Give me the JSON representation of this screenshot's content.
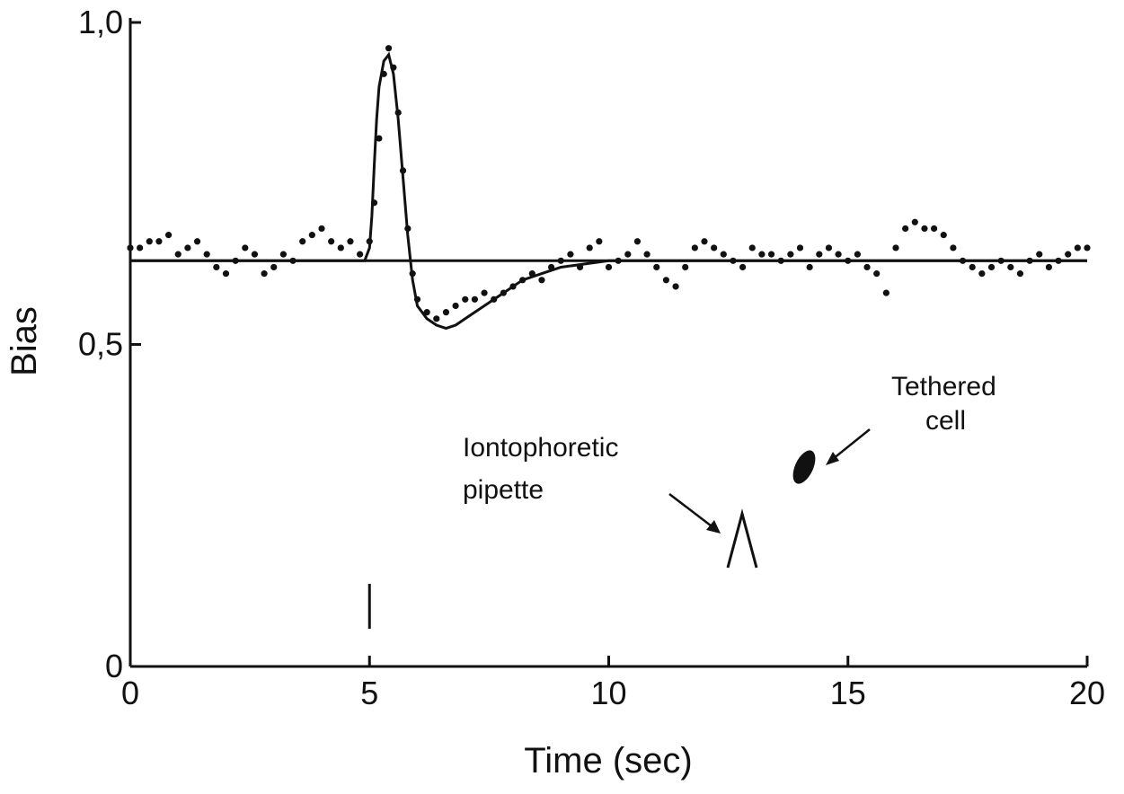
{
  "chart_data": {
    "type": "line",
    "xlabel": "Time (sec)",
    "ylabel": "Bias",
    "xlim": [
      0,
      20
    ],
    "ylim": [
      0,
      1.0
    ],
    "x_ticks": [
      0,
      5,
      10,
      15,
      20
    ],
    "x_tick_labels": [
      "0",
      "5",
      "10",
      "15",
      "20"
    ],
    "y_ticks": [
      0,
      0.5,
      1.0
    ],
    "y_tick_labels": [
      "0",
      "0,5",
      "1,0"
    ],
    "baseline": 0.63,
    "stimulus_time": 5.0,
    "series": [
      {
        "style": "points",
        "x": [
          0,
          0.2,
          0.4,
          0.6,
          0.8,
          1.0,
          1.2,
          1.4,
          1.6,
          1.8,
          2.0,
          2.2,
          2.4,
          2.6,
          2.8,
          3.0,
          3.2,
          3.4,
          3.6,
          3.8,
          4.0,
          4.2,
          4.4,
          4.6,
          4.8,
          5.0,
          5.1,
          5.2,
          5.3,
          5.4,
          5.5,
          5.6,
          5.7,
          5.8,
          5.9,
          6.0,
          6.2,
          6.4,
          6.6,
          6.8,
          7.0,
          7.2,
          7.4,
          7.6,
          7.8,
          8.0,
          8.2,
          8.4,
          8.6,
          8.8,
          9.0,
          9.2,
          9.4,
          9.6,
          9.8,
          10.0,
          10.2,
          10.4,
          10.6,
          10.8,
          11.0,
          11.2,
          11.4,
          11.6,
          11.8,
          12.0,
          12.2,
          12.4,
          12.6,
          12.8,
          13.0,
          13.2,
          13.4,
          13.6,
          13.8,
          14.0,
          14.2,
          14.4,
          14.6,
          14.8,
          15.0,
          15.2,
          15.4,
          15.6,
          15.8,
          16.0,
          16.2,
          16.4,
          16.6,
          16.8,
          17.0,
          17.2,
          17.4,
          17.6,
          17.8,
          18.0,
          18.2,
          18.4,
          18.6,
          18.8,
          19.0,
          19.2,
          19.4,
          19.6,
          19.8,
          20.0
        ],
        "y": [
          0.65,
          0.65,
          0.66,
          0.66,
          0.67,
          0.64,
          0.65,
          0.66,
          0.64,
          0.62,
          0.61,
          0.63,
          0.65,
          0.64,
          0.61,
          0.62,
          0.64,
          0.63,
          0.66,
          0.67,
          0.68,
          0.66,
          0.65,
          0.66,
          0.64,
          0.66,
          0.72,
          0.82,
          0.92,
          0.96,
          0.93,
          0.86,
          0.77,
          0.68,
          0.61,
          0.57,
          0.55,
          0.54,
          0.55,
          0.56,
          0.57,
          0.57,
          0.58,
          0.57,
          0.58,
          0.59,
          0.6,
          0.61,
          0.6,
          0.62,
          0.63,
          0.64,
          0.62,
          0.65,
          0.66,
          0.62,
          0.63,
          0.64,
          0.66,
          0.64,
          0.62,
          0.6,
          0.59,
          0.62,
          0.65,
          0.66,
          0.65,
          0.64,
          0.63,
          0.62,
          0.65,
          0.64,
          0.64,
          0.63,
          0.64,
          0.65,
          0.62,
          0.64,
          0.65,
          0.64,
          0.63,
          0.64,
          0.62,
          0.61,
          0.58,
          0.65,
          0.68,
          0.69,
          0.68,
          0.68,
          0.67,
          0.65,
          0.63,
          0.62,
          0.61,
          0.62,
          0.63,
          0.62,
          0.61,
          0.63,
          0.64,
          0.62,
          0.63,
          0.64,
          0.65,
          0.65
        ]
      },
      {
        "style": "solid",
        "x": [
          0,
          4.9,
          5.0,
          5.05,
          5.1,
          5.15,
          5.2,
          5.3,
          5.4,
          5.5,
          5.6,
          5.7,
          5.8,
          5.9,
          6.0,
          6.2,
          6.4,
          6.6,
          6.8,
          7.0,
          7.4,
          7.8,
          8.2,
          8.6,
          9.0,
          9.5,
          10.0,
          11.0,
          12.0,
          20.0
        ],
        "y": [
          0.63,
          0.63,
          0.65,
          0.7,
          0.78,
          0.85,
          0.9,
          0.94,
          0.95,
          0.92,
          0.85,
          0.76,
          0.67,
          0.6,
          0.56,
          0.54,
          0.53,
          0.525,
          0.53,
          0.54,
          0.56,
          0.58,
          0.6,
          0.61,
          0.62,
          0.625,
          0.63,
          0.63,
          0.63,
          0.63
        ]
      }
    ],
    "annotations": [
      {
        "lines": [
          "Iontophoretic",
          "pipette"
        ]
      },
      {
        "lines": [
          "Tethered",
          "cell"
        ]
      }
    ]
  }
}
